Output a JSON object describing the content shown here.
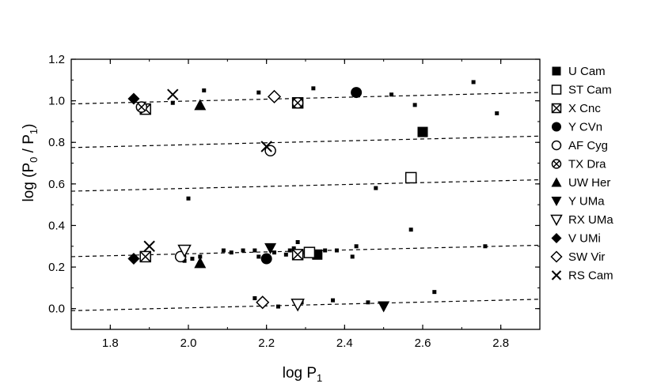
{
  "chart_data": {
    "type": "scatter",
    "xlabel": "log P",
    "xlabel_sub": "1",
    "ylabel": "log (P / P )",
    "ylabel_sub0": "0",
    "ylabel_sub1": "1",
    "xlim": [
      1.7,
      2.9
    ],
    "ylim": [
      -0.1,
      1.2
    ],
    "xticks": [
      1.8,
      2.0,
      2.2,
      2.4,
      2.6,
      2.8
    ],
    "xtick_labels": [
      "1.8",
      "2.0",
      "2.2",
      "2.4",
      "2.6",
      "2.8"
    ],
    "yticks": [
      0.0,
      0.2,
      0.4,
      0.6,
      0.8,
      1.0,
      1.2
    ],
    "ytick_labels": [
      "0.0",
      "0.2",
      "0.4",
      "0.6",
      "0.8",
      "1.0",
      "1.2"
    ],
    "grid": false,
    "legend_position": "right",
    "background_points": [
      [
        1.96,
        0.99
      ],
      [
        2.04,
        1.05
      ],
      [
        2.18,
        1.04
      ],
      [
        2.32,
        1.06
      ],
      [
        2.52,
        1.03
      ],
      [
        2.58,
        0.98
      ],
      [
        2.73,
        1.09
      ],
      [
        2.79,
        0.94
      ],
      [
        2.0,
        0.53
      ],
      [
        2.48,
        0.58
      ],
      [
        2.57,
        0.38
      ],
      [
        1.99,
        0.23
      ],
      [
        2.01,
        0.24
      ],
      [
        2.03,
        0.25
      ],
      [
        2.09,
        0.28
      ],
      [
        2.11,
        0.27
      ],
      [
        2.14,
        0.28
      ],
      [
        2.17,
        0.28
      ],
      [
        2.18,
        0.25
      ],
      [
        2.22,
        0.27
      ],
      [
        2.25,
        0.26
      ],
      [
        2.26,
        0.28
      ],
      [
        2.27,
        0.29
      ],
      [
        2.28,
        0.32
      ],
      [
        2.3,
        0.27
      ],
      [
        2.32,
        0.26
      ],
      [
        2.33,
        0.27
      ],
      [
        2.35,
        0.28
      ],
      [
        2.38,
        0.28
      ],
      [
        2.42,
        0.25
      ],
      [
        2.43,
        0.3
      ],
      [
        2.76,
        0.3
      ],
      [
        2.17,
        0.05
      ],
      [
        2.23,
        0.01
      ],
      [
        2.29,
        0.03
      ],
      [
        2.37,
        0.04
      ],
      [
        2.46,
        0.03
      ],
      [
        2.63,
        0.08
      ]
    ],
    "trend_lines": [
      {
        "x": [
          1.7,
          2.9
        ],
        "y": [
          0.985,
          1.04
        ]
      },
      {
        "x": [
          1.7,
          2.9
        ],
        "y": [
          0.775,
          0.83
        ]
      },
      {
        "x": [
          1.7,
          2.9
        ],
        "y": [
          0.565,
          0.62
        ]
      },
      {
        "x": [
          1.7,
          2.9
        ],
        "y": [
          0.25,
          0.305
        ]
      },
      {
        "x": [
          1.7,
          2.9
        ],
        "y": [
          -0.01,
          0.045
        ]
      }
    ],
    "series": [
      {
        "name": "U Cam",
        "marker": "square-filled",
        "points": [
          [
            2.33,
            0.26
          ],
          [
            2.6,
            0.85
          ]
        ]
      },
      {
        "name": "ST Cam",
        "marker": "square-open",
        "points": [
          [
            2.31,
            0.27
          ],
          [
            2.57,
            0.63
          ]
        ]
      },
      {
        "name": "X Cnc",
        "marker": "square-x",
        "points": [
          [
            1.89,
            0.96
          ],
          [
            2.28,
            0.99
          ],
          [
            1.89,
            0.25
          ],
          [
            2.28,
            0.26
          ]
        ]
      },
      {
        "name": "Y CVn",
        "marker": "circle-filled",
        "points": [
          [
            2.43,
            1.04
          ],
          [
            2.2,
            0.24
          ]
        ]
      },
      {
        "name": "AF Cyg",
        "marker": "circle-open",
        "points": [
          [
            2.21,
            0.76
          ],
          [
            1.98,
            0.25
          ]
        ]
      },
      {
        "name": "TX Dra",
        "marker": "circle-x",
        "points": [
          [
            1.88,
            0.97
          ],
          [
            2.28,
            0.99
          ]
        ]
      },
      {
        "name": "UW Her",
        "marker": "triangle-up-filled",
        "points": [
          [
            2.03,
            0.98
          ],
          [
            2.03,
            0.22
          ]
        ]
      },
      {
        "name": "Y UMa",
        "marker": "triangle-down-filled",
        "points": [
          [
            2.21,
            0.29
          ],
          [
            2.5,
            0.01
          ]
        ]
      },
      {
        "name": "RX UMa",
        "marker": "triangle-down-open",
        "points": [
          [
            1.99,
            0.28
          ],
          [
            2.28,
            0.02
          ]
        ]
      },
      {
        "name": "V UMi",
        "marker": "diamond-filled",
        "points": [
          [
            1.86,
            1.01
          ],
          [
            1.86,
            0.24
          ]
        ]
      },
      {
        "name": "SW Vir",
        "marker": "diamond-open",
        "points": [
          [
            2.22,
            1.02
          ],
          [
            2.19,
            0.03
          ]
        ]
      },
      {
        "name": "RS Cam",
        "marker": "x",
        "points": [
          [
            1.96,
            1.03
          ],
          [
            2.2,
            0.78
          ],
          [
            1.9,
            0.3
          ]
        ]
      }
    ]
  }
}
